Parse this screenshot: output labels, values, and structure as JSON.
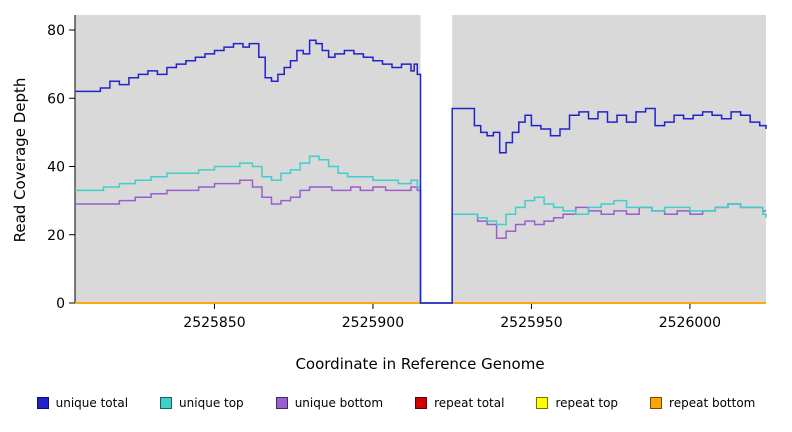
{
  "chart_data": {
    "type": "line",
    "line_shape": "step-after",
    "title": "",
    "xlabel": "Coordinate in Reference Genome",
    "ylabel": "Read Coverage Depth",
    "xlim": [
      2525806,
      2526024
    ],
    "ylim": [
      0,
      80
    ],
    "x_ticks": [
      2525850,
      2525900,
      2525950,
      2526000
    ],
    "y_ticks": [
      0,
      20,
      40,
      60,
      80
    ],
    "plot_bg": "#d9d9d9",
    "gap_region": {
      "start": 2525915,
      "end": 2525925,
      "color": "#ffffff"
    },
    "series": [
      {
        "name": "repeat total",
        "color": "#cc0000",
        "points": [
          [
            2525806,
            0
          ],
          [
            2526024,
            0
          ]
        ]
      },
      {
        "name": "repeat top",
        "color": "#ffff00",
        "points": [
          [
            2525806,
            0
          ],
          [
            2526024,
            0
          ]
        ]
      },
      {
        "name": "repeat bottom",
        "color": "#ffa500",
        "points": [
          [
            2525806,
            0
          ],
          [
            2526024,
            0
          ]
        ]
      },
      {
        "name": "unique bottom",
        "color": "#9a5fcc",
        "points": [
          [
            2525806,
            29
          ],
          [
            2525815,
            29
          ],
          [
            2525820,
            30
          ],
          [
            2525825,
            31
          ],
          [
            2525830,
            32
          ],
          [
            2525835,
            33
          ],
          [
            2525842,
            33
          ],
          [
            2525845,
            34
          ],
          [
            2525850,
            35
          ],
          [
            2525855,
            35
          ],
          [
            2525858,
            36
          ],
          [
            2525862,
            34
          ],
          [
            2525865,
            31
          ],
          [
            2525868,
            29
          ],
          [
            2525871,
            30
          ],
          [
            2525874,
            31
          ],
          [
            2525877,
            33
          ],
          [
            2525880,
            34
          ],
          [
            2525884,
            34
          ],
          [
            2525887,
            33
          ],
          [
            2525890,
            33
          ],
          [
            2525893,
            34
          ],
          [
            2525896,
            33
          ],
          [
            2525900,
            34
          ],
          [
            2525904,
            33
          ],
          [
            2525908,
            33
          ],
          [
            2525912,
            34
          ],
          [
            2525914,
            33
          ],
          [
            2525915,
            0
          ],
          [
            2525925,
            26
          ],
          [
            2525930,
            26
          ],
          [
            2525933,
            24
          ],
          [
            2525936,
            23
          ],
          [
            2525939,
            19
          ],
          [
            2525942,
            21
          ],
          [
            2525945,
            23
          ],
          [
            2525948,
            24
          ],
          [
            2525951,
            23
          ],
          [
            2525954,
            24
          ],
          [
            2525957,
            25
          ],
          [
            2525960,
            26
          ],
          [
            2525964,
            28
          ],
          [
            2525968,
            27
          ],
          [
            2525972,
            26
          ],
          [
            2525976,
            27
          ],
          [
            2525980,
            26
          ],
          [
            2525984,
            28
          ],
          [
            2525988,
            27
          ],
          [
            2525992,
            26
          ],
          [
            2525996,
            27
          ],
          [
            2526000,
            26
          ],
          [
            2526004,
            27
          ],
          [
            2526008,
            28
          ],
          [
            2526012,
            29
          ],
          [
            2526016,
            28
          ],
          [
            2526020,
            28
          ],
          [
            2526023,
            27
          ],
          [
            2526024,
            27
          ]
        ]
      },
      {
        "name": "unique top",
        "color": "#3fcfcc",
        "points": [
          [
            2525806,
            33
          ],
          [
            2525815,
            34
          ],
          [
            2525820,
            35
          ],
          [
            2525825,
            36
          ],
          [
            2525830,
            37
          ],
          [
            2525835,
            38
          ],
          [
            2525842,
            38
          ],
          [
            2525845,
            39
          ],
          [
            2525850,
            40
          ],
          [
            2525855,
            40
          ],
          [
            2525858,
            41
          ],
          [
            2525862,
            40
          ],
          [
            2525865,
            37
          ],
          [
            2525868,
            36
          ],
          [
            2525871,
            38
          ],
          [
            2525874,
            39
          ],
          [
            2525877,
            41
          ],
          [
            2525880,
            43
          ],
          [
            2525883,
            42
          ],
          [
            2525886,
            40
          ],
          [
            2525889,
            38
          ],
          [
            2525892,
            37
          ],
          [
            2525896,
            37
          ],
          [
            2525900,
            36
          ],
          [
            2525904,
            36
          ],
          [
            2525908,
            35
          ],
          [
            2525912,
            36
          ],
          [
            2525914,
            34
          ],
          [
            2525915,
            0
          ],
          [
            2525925,
            26
          ],
          [
            2525930,
            26
          ],
          [
            2525933,
            25
          ],
          [
            2525936,
            24
          ],
          [
            2525939,
            23
          ],
          [
            2525942,
            26
          ],
          [
            2525945,
            28
          ],
          [
            2525948,
            30
          ],
          [
            2525951,
            31
          ],
          [
            2525954,
            29
          ],
          [
            2525957,
            28
          ],
          [
            2525960,
            27
          ],
          [
            2525964,
            26
          ],
          [
            2525968,
            28
          ],
          [
            2525972,
            29
          ],
          [
            2525976,
            30
          ],
          [
            2525980,
            28
          ],
          [
            2525984,
            28
          ],
          [
            2525988,
            27
          ],
          [
            2525992,
            28
          ],
          [
            2525996,
            28
          ],
          [
            2526000,
            27
          ],
          [
            2526004,
            27
          ],
          [
            2526008,
            28
          ],
          [
            2526012,
            29
          ],
          [
            2526016,
            28
          ],
          [
            2526020,
            28
          ],
          [
            2526023,
            26
          ],
          [
            2526024,
            25
          ]
        ]
      },
      {
        "name": "unique total",
        "color": "#2222cc",
        "points": [
          [
            2525806,
            62
          ],
          [
            2525814,
            63
          ],
          [
            2525817,
            65
          ],
          [
            2525820,
            64
          ],
          [
            2525823,
            66
          ],
          [
            2525826,
            67
          ],
          [
            2525829,
            68
          ],
          [
            2525832,
            67
          ],
          [
            2525835,
            69
          ],
          [
            2525838,
            70
          ],
          [
            2525841,
            71
          ],
          [
            2525844,
            72
          ],
          [
            2525847,
            73
          ],
          [
            2525850,
            74
          ],
          [
            2525853,
            75
          ],
          [
            2525856,
            76
          ],
          [
            2525859,
            75
          ],
          [
            2525861,
            76
          ],
          [
            2525864,
            72
          ],
          [
            2525866,
            66
          ],
          [
            2525868,
            65
          ],
          [
            2525870,
            67
          ],
          [
            2525872,
            69
          ],
          [
            2525874,
            71
          ],
          [
            2525876,
            74
          ],
          [
            2525878,
            73
          ],
          [
            2525880,
            77
          ],
          [
            2525882,
            76
          ],
          [
            2525884,
            74
          ],
          [
            2525886,
            72
          ],
          [
            2525888,
            73
          ],
          [
            2525891,
            74
          ],
          [
            2525894,
            73
          ],
          [
            2525897,
            72
          ],
          [
            2525900,
            71
          ],
          [
            2525903,
            70
          ],
          [
            2525906,
            69
          ],
          [
            2525909,
            70
          ],
          [
            2525912,
            68
          ],
          [
            2525913,
            70
          ],
          [
            2525914,
            67
          ],
          [
            2525915,
            0
          ],
          [
            2525925,
            57
          ],
          [
            2525930,
            57
          ],
          [
            2525932,
            52
          ],
          [
            2525934,
            50
          ],
          [
            2525936,
            49
          ],
          [
            2525938,
            50
          ],
          [
            2525940,
            44
          ],
          [
            2525942,
            47
          ],
          [
            2525944,
            50
          ],
          [
            2525946,
            53
          ],
          [
            2525948,
            55
          ],
          [
            2525950,
            52
          ],
          [
            2525953,
            51
          ],
          [
            2525956,
            49
          ],
          [
            2525959,
            51
          ],
          [
            2525962,
            55
          ],
          [
            2525965,
            56
          ],
          [
            2525968,
            54
          ],
          [
            2525971,
            56
          ],
          [
            2525974,
            53
          ],
          [
            2525977,
            55
          ],
          [
            2525980,
            53
          ],
          [
            2525983,
            56
          ],
          [
            2525986,
            57
          ],
          [
            2525989,
            52
          ],
          [
            2525992,
            53
          ],
          [
            2525995,
            55
          ],
          [
            2525998,
            54
          ],
          [
            2526001,
            55
          ],
          [
            2526004,
            56
          ],
          [
            2526007,
            55
          ],
          [
            2526010,
            54
          ],
          [
            2526013,
            56
          ],
          [
            2526016,
            55
          ],
          [
            2526019,
            53
          ],
          [
            2526022,
            52
          ],
          [
            2526024,
            51
          ]
        ]
      }
    ],
    "legend": [
      {
        "label": "unique total",
        "color": "#2222cc"
      },
      {
        "label": "unique top",
        "color": "#3fcfcc"
      },
      {
        "label": "unique bottom",
        "color": "#9a5fcc"
      },
      {
        "label": "repeat total",
        "color": "#cc0000"
      },
      {
        "label": "repeat top",
        "color": "#ffff00"
      },
      {
        "label": "repeat bottom",
        "color": "#ffa500"
      }
    ]
  }
}
